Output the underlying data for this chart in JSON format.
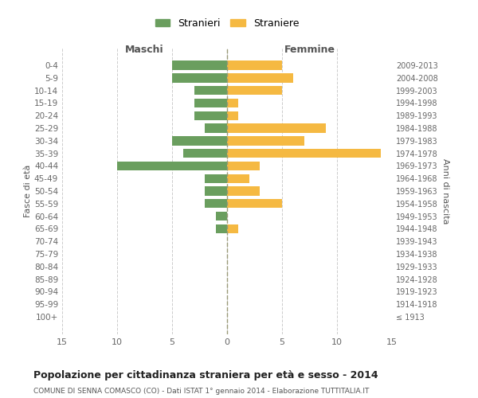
{
  "age_groups": [
    "0-4",
    "5-9",
    "10-14",
    "15-19",
    "20-24",
    "25-29",
    "30-34",
    "35-39",
    "40-44",
    "45-49",
    "50-54",
    "55-59",
    "60-64",
    "65-69",
    "70-74",
    "75-79",
    "80-84",
    "85-89",
    "90-94",
    "95-99",
    "100+"
  ],
  "birth_years": [
    "2009-2013",
    "2004-2008",
    "1999-2003",
    "1994-1998",
    "1989-1993",
    "1984-1988",
    "1979-1983",
    "1974-1978",
    "1969-1973",
    "1964-1968",
    "1959-1963",
    "1954-1958",
    "1949-1953",
    "1944-1948",
    "1939-1943",
    "1934-1938",
    "1929-1933",
    "1924-1928",
    "1919-1923",
    "1914-1918",
    "≤ 1913"
  ],
  "maschi": [
    5,
    5,
    3,
    3,
    3,
    2,
    5,
    4,
    10,
    2,
    2,
    2,
    1,
    1,
    0,
    0,
    0,
    0,
    0,
    0,
    0
  ],
  "femmine": [
    5,
    6,
    5,
    1,
    1,
    9,
    7,
    14,
    3,
    2,
    3,
    5,
    0,
    1,
    0,
    0,
    0,
    0,
    0,
    0,
    0
  ],
  "color_maschi": "#6a9e5e",
  "color_femmine": "#f5b942",
  "title": "Popolazione per cittadinanza straniera per età e sesso - 2014",
  "subtitle": "COMUNE DI SENNA COMASCO (CO) - Dati ISTAT 1° gennaio 2014 - Elaborazione TUTTITALIA.IT",
  "ylabel_left": "Fasce di età",
  "ylabel_right": "Anni di nascita",
  "xlabel_left": "Maschi",
  "xlabel_right": "Femmine",
  "legend_maschi": "Stranieri",
  "legend_femmine": "Straniere",
  "xlim": 15,
  "background_color": "#ffffff",
  "grid_color": "#cccccc"
}
